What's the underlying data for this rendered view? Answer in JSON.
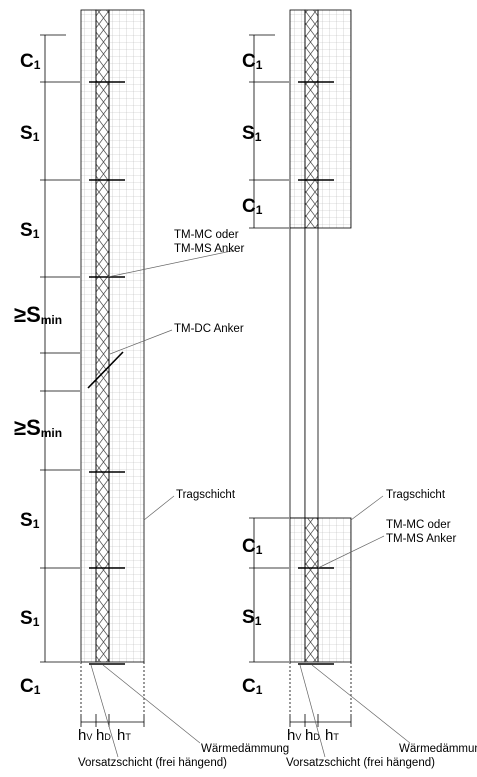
{
  "left_panel": {
    "dimension_labels": [
      {
        "letter": "C",
        "sub": "1",
        "ge": ""
      },
      {
        "letter": "S",
        "sub": "1",
        "ge": ""
      },
      {
        "letter": "S",
        "sub": "1",
        "ge": ""
      },
      {
        "letter": "S",
        "sub": "min",
        "ge": "≥"
      },
      {
        "letter": "S",
        "sub": "min",
        "ge": "≥"
      },
      {
        "letter": "S",
        "sub": "1",
        "ge": ""
      },
      {
        "letter": "S",
        "sub": "1",
        "ge": ""
      },
      {
        "letter": "C",
        "sub": "1",
        "ge": ""
      }
    ],
    "callouts": {
      "anchor_mc_line1": "TM-MC oder",
      "anchor_mc_line2": "TM-MS Anker",
      "anchor_dc": "TM-DC Anker",
      "tragschicht": "Tragschicht"
    },
    "layer_labels": [
      {
        "letter": "h",
        "sub": "V"
      },
      {
        "letter": "h",
        "sub": "D"
      },
      {
        "letter": "h",
        "sub": "T"
      }
    ],
    "bottom_labels": {
      "waermedaemmung": "Wärmedämmung",
      "vorsatzschicht": "Vorsatzschicht (frei hängend)"
    }
  },
  "right_panel": {
    "dimension_labels": [
      {
        "letter": "C",
        "sub": "1"
      },
      {
        "letter": "S",
        "sub": "1"
      },
      {
        "letter": "C",
        "sub": "1"
      },
      {
        "letter": "C",
        "sub": "1"
      },
      {
        "letter": "S",
        "sub": "1"
      },
      {
        "letter": "C",
        "sub": "1"
      }
    ],
    "callouts": {
      "tragschicht": "Tragschicht",
      "anchor_mc_line1": "TM-MC oder",
      "anchor_mc_line2": "TM-MS Anker"
    },
    "layer_labels": [
      {
        "letter": "h",
        "sub": "V"
      },
      {
        "letter": "h",
        "sub": "D"
      },
      {
        "letter": "h",
        "sub": "T"
      }
    ],
    "bottom_labels": {
      "waermedaemmung": "Wärmedämmung",
      "vorsatzschicht": "Vorsatzschicht (frei hängend)"
    }
  },
  "colors": {
    "line": "#000000",
    "grid": "#b5b5b5",
    "fill": "#ffffff"
  }
}
